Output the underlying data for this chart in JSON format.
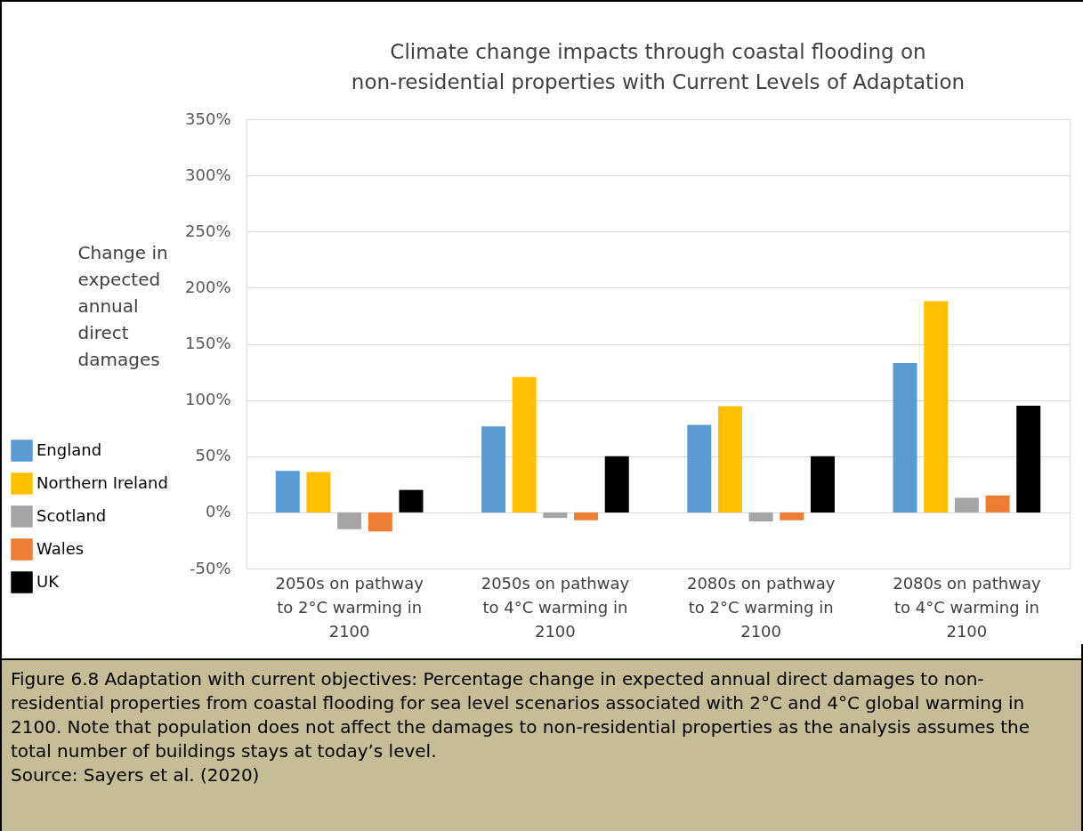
{
  "chart_data": {
    "type": "bar",
    "title": "Climate change impacts through coastal flooding on non-residential properties with Current Levels of Adaptation",
    "ylabel": "Change in expected annual direct damages",
    "categories": [
      "2050s on pathway to 2°C warming in 2100",
      "2050s on pathway to 4°C warming in 2100",
      "2080s on pathway to 2°C warming in 2100",
      "2080s on pathway to 4°C warming in 2100"
    ],
    "series": [
      {
        "name": "England",
        "color": "#5b9bd5",
        "values": [
          37,
          76.5,
          78,
          133
        ]
      },
      {
        "name": "Northern Ireland",
        "color": "#ffc000",
        "values": [
          36,
          120.5,
          94.5,
          188
        ]
      },
      {
        "name": "Scotland",
        "color": "#a5a5a5",
        "values": [
          -15,
          -5,
          -8,
          13
        ]
      },
      {
        "name": "Wales",
        "color": "#ed7d31",
        "values": [
          -17,
          -7,
          -7,
          15
        ]
      },
      {
        "name": "UK",
        "color": "#000000",
        "values": [
          20,
          50,
          50,
          95
        ]
      }
    ],
    "ylim": [
      -50,
      350
    ],
    "yticks": [
      {
        "value": -50,
        "label": "-50%"
      },
      {
        "value": 0,
        "label": "0%"
      },
      {
        "value": 50,
        "label": "50%"
      },
      {
        "value": 100,
        "label": "100%"
      },
      {
        "value": 150,
        "label": "150%"
      },
      {
        "value": 200,
        "label": "200%"
      },
      {
        "value": 250,
        "label": "250%"
      },
      {
        "value": 300,
        "label": "300%"
      },
      {
        "value": 350,
        "label": "350%"
      }
    ],
    "grid": "y",
    "legend": "bottom left",
    "annotations": [
      "Figure 6.8 Adaptation with current objectives: Percentage change in expected annual direct damages to non-residential properties from coastal flooding for sea level scenarios associated with 2°C and 4°C global warming in 2100. Note that population does not affect the damages to non-residential properties as the analysis assumes the total number of buildings stays at today’s level.",
      "Source: Sayers et al. (2020)"
    ]
  }
}
